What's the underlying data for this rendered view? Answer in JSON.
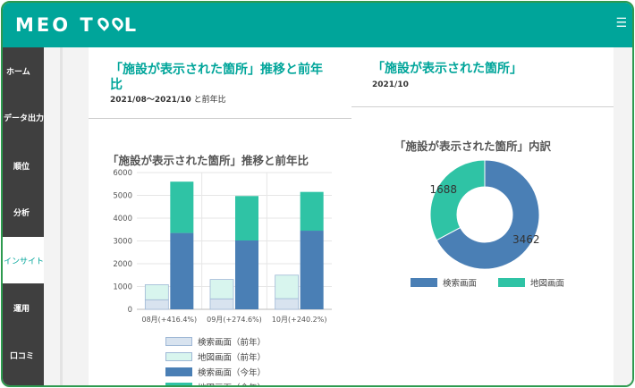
{
  "app": {
    "logo_pre": "MEO T",
    "logo_post": "L",
    "menu_icon": "hamburger-icon"
  },
  "sidebar": {
    "items": [
      {
        "label": "ホーム",
        "active": false
      },
      {
        "label": "データ出力",
        "active": false
      },
      {
        "label": "順位",
        "active": false
      },
      {
        "label": "分析",
        "active": false
      },
      {
        "label": "インサイト",
        "active": true
      },
      {
        "label": "運用",
        "active": false
      },
      {
        "label": "口コミ",
        "active": false
      }
    ]
  },
  "left_panel": {
    "title_line1": "「施設が表示された箇所」推移と前年",
    "title_line2": "比",
    "period": "2021/08〜2021/10",
    "period_suffix": " と前年比"
  },
  "right_panel": {
    "title": "「施設が表示された箇所」",
    "period": "2021/10"
  },
  "colors": {
    "accent": "#00a59a",
    "search_current": "#4a7fb5",
    "map_current": "#2fc3a5",
    "search_prev": "#d8e3ef",
    "map_prev": "#d8f5ee"
  },
  "chart_data": [
    {
      "type": "bar",
      "stacked": true,
      "title": "「施設が表示された箇所」推移と前年比",
      "categories": [
        "08月(+416.4%)",
        "09月(+274.6%)",
        "10月(+240.2%)"
      ],
      "ylim": [
        0,
        6000
      ],
      "yticks": [
        0,
        1000,
        2000,
        3000,
        4000,
        5000,
        6000
      ],
      "series": [
        {
          "name": "検索画面（前年）",
          "stack": "prev",
          "color": "#d8e3ef",
          "values": [
            420,
            460,
            470
          ]
        },
        {
          "name": "地図画面（前年）",
          "stack": "prev",
          "color": "#d8f5ee",
          "values": [
            660,
            850,
            1030
          ]
        },
        {
          "name": "検索画面（今年）",
          "stack": "curr",
          "color": "#4a7fb5",
          "values": [
            3350,
            3020,
            3450
          ]
        },
        {
          "name": "地図画面（今年）",
          "stack": "curr",
          "color": "#2fc3a5",
          "values": [
            2250,
            1950,
            1700
          ]
        }
      ],
      "legend_position": "bottom",
      "grid": true
    },
    {
      "type": "pie",
      "donut": true,
      "title": "「施設が表示された箇所」内訳",
      "categories": [
        "検索画面",
        "地図画面"
      ],
      "values": [
        3462,
        1688
      ],
      "colors": [
        "#4a7fb5",
        "#2fc3a5"
      ],
      "legend_position": "bottom"
    }
  ]
}
